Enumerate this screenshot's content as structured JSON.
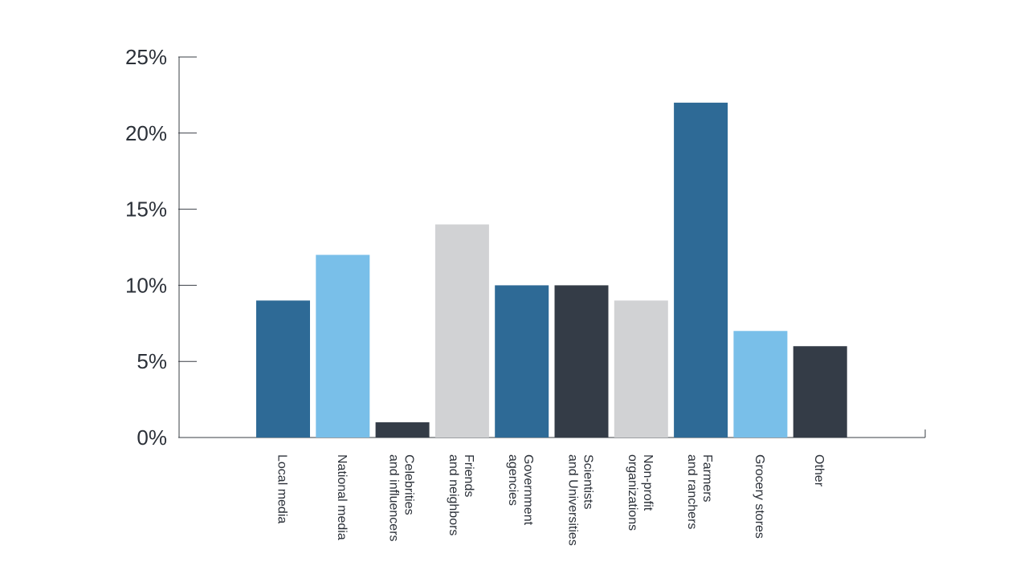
{
  "chart_data": {
    "type": "bar",
    "categories": [
      [
        "Local media"
      ],
      [
        "National media"
      ],
      [
        "Celebrities",
        "and influencers"
      ],
      [
        "Friends",
        "and neighbors"
      ],
      [
        "Government",
        "agencies"
      ],
      [
        "Scientists",
        "and Universities"
      ],
      [
        "Non-profit",
        "organizations"
      ],
      [
        "Farmers",
        "and ranchers"
      ],
      [
        "Grocery stores"
      ],
      [
        "Other"
      ]
    ],
    "values": [
      9,
      12,
      1,
      14,
      10,
      10,
      9,
      22,
      7,
      6
    ],
    "colors": [
      "#2e6a96",
      "#79bfe9",
      "#343c47",
      "#d1d2d4",
      "#2e6a96",
      "#343c47",
      "#d1d2d4",
      "#2e6a96",
      "#79bfe9",
      "#343c47"
    ],
    "y_ticks": [
      0,
      5,
      10,
      15,
      20,
      25
    ],
    "y_tick_labels": [
      "0%",
      "5%",
      "10%",
      "15%",
      "20%",
      "25%"
    ],
    "ylim": [
      0,
      25
    ],
    "title": "",
    "xlabel": "",
    "ylabel": "",
    "grid": false,
    "legend": "none"
  }
}
